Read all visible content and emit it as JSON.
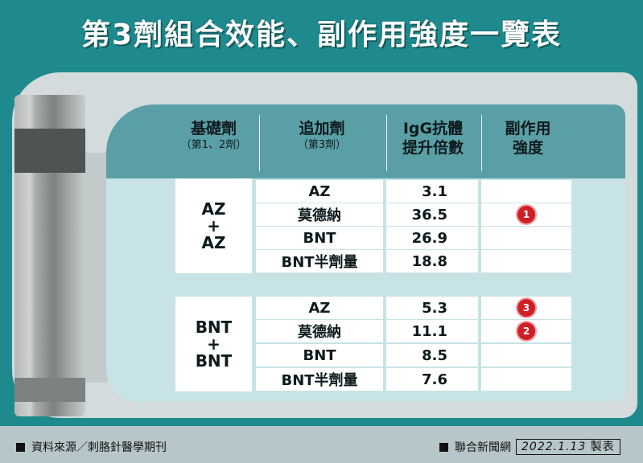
{
  "title": "第3劑組合效能、副作用強度一覽表",
  "headers": {
    "base": "基礎劑",
    "base_sub": "（第1、2劑）",
    "booster": "追加劑",
    "booster_sub": "（第3劑）",
    "igg_line1": "IgG抗體",
    "igg_line2": "提升倍數",
    "side_line1": "副作用",
    "side_line2": "強度"
  },
  "groups": [
    {
      "label_line1": "AZ",
      "label_plus": "+",
      "label_line2": "AZ",
      "rows": [
        {
          "booster": "AZ",
          "igg": "3.1",
          "badge": ""
        },
        {
          "booster": "莫德納",
          "igg": "36.5",
          "badge": "1"
        },
        {
          "booster": "BNT",
          "igg": "26.9",
          "badge": ""
        },
        {
          "booster": "BNT半劑量",
          "igg": "18.8",
          "badge": ""
        }
      ]
    },
    {
      "label_line1": "BNT",
      "label_plus": "+",
      "label_line2": "BNT",
      "rows": [
        {
          "booster": "AZ",
          "igg": "5.3",
          "badge": "3"
        },
        {
          "booster": "莫德納",
          "igg": "11.1",
          "badge": "2"
        },
        {
          "booster": "BNT",
          "igg": "8.5",
          "badge": ""
        },
        {
          "booster": "BNT半劑量",
          "igg": "7.6",
          "badge": ""
        }
      ]
    }
  ],
  "footer": {
    "source": "資料來源／刺胳針醫學期刊",
    "credit": "聯合新聞網",
    "date": "2022.1.13",
    "made": "製表"
  },
  "colors": {
    "background": "#1e8a8e",
    "header": "#5a9fa5",
    "badge": "#cf1f26"
  }
}
